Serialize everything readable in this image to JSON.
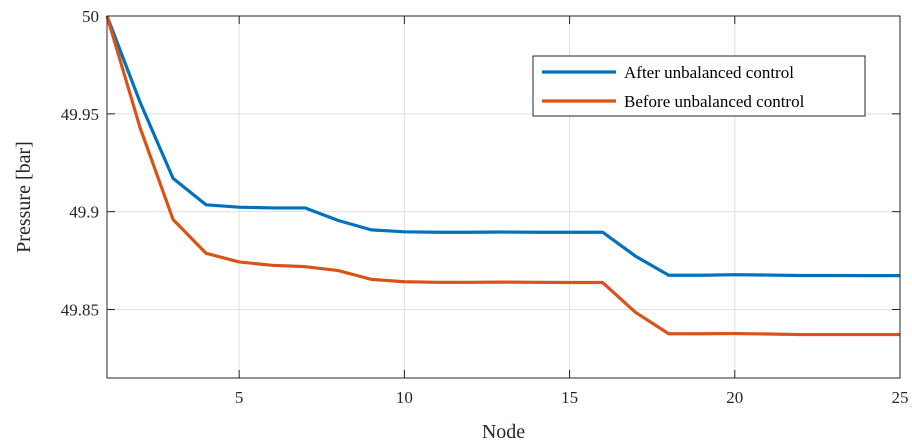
{
  "chart_data": {
    "type": "line",
    "title": "",
    "xlabel": "Node",
    "ylabel": "Pressure [bar]",
    "xlim": [
      1,
      25
    ],
    "ylim": [
      49.815,
      50.0
    ],
    "x_ticks": [
      5,
      10,
      15,
      20,
      25
    ],
    "x_tick_labels": [
      "5",
      "10",
      "15",
      "20",
      "25"
    ],
    "y_ticks": [
      49.85,
      49.9,
      49.95,
      50.0
    ],
    "y_tick_labels": [
      "49.85",
      "49.9",
      "49.95",
      "50"
    ],
    "grid": true,
    "legend_position": "top-right",
    "x": [
      1,
      2,
      3,
      4,
      5,
      6,
      7,
      8,
      9,
      10,
      11,
      12,
      13,
      14,
      15,
      16,
      17,
      18,
      19,
      20,
      21,
      22,
      23,
      24,
      25
    ],
    "series": [
      {
        "name": "After unbalanced control",
        "color": "#0072BD",
        "values": [
          50.0,
          49.956,
          49.917,
          49.9035,
          49.9023,
          49.9019,
          49.9019,
          49.8955,
          49.8907,
          49.8897,
          49.8895,
          49.8895,
          49.8896,
          49.8895,
          49.8895,
          49.8895,
          49.8772,
          49.8675,
          49.8675,
          49.8678,
          49.8676,
          49.8674,
          49.8674,
          49.8673,
          49.8673
        ]
      },
      {
        "name": "Before unbalanced control",
        "color": "#D95319",
        "values": [
          50.0,
          49.943,
          49.896,
          49.8787,
          49.8743,
          49.8726,
          49.8719,
          49.8699,
          49.8654,
          49.8642,
          49.8639,
          49.8639,
          49.864,
          49.8639,
          49.8638,
          49.8638,
          49.8485,
          49.8376,
          49.8376,
          49.8377,
          49.8375,
          49.8372,
          49.8372,
          49.8372,
          49.8372
        ]
      }
    ]
  }
}
